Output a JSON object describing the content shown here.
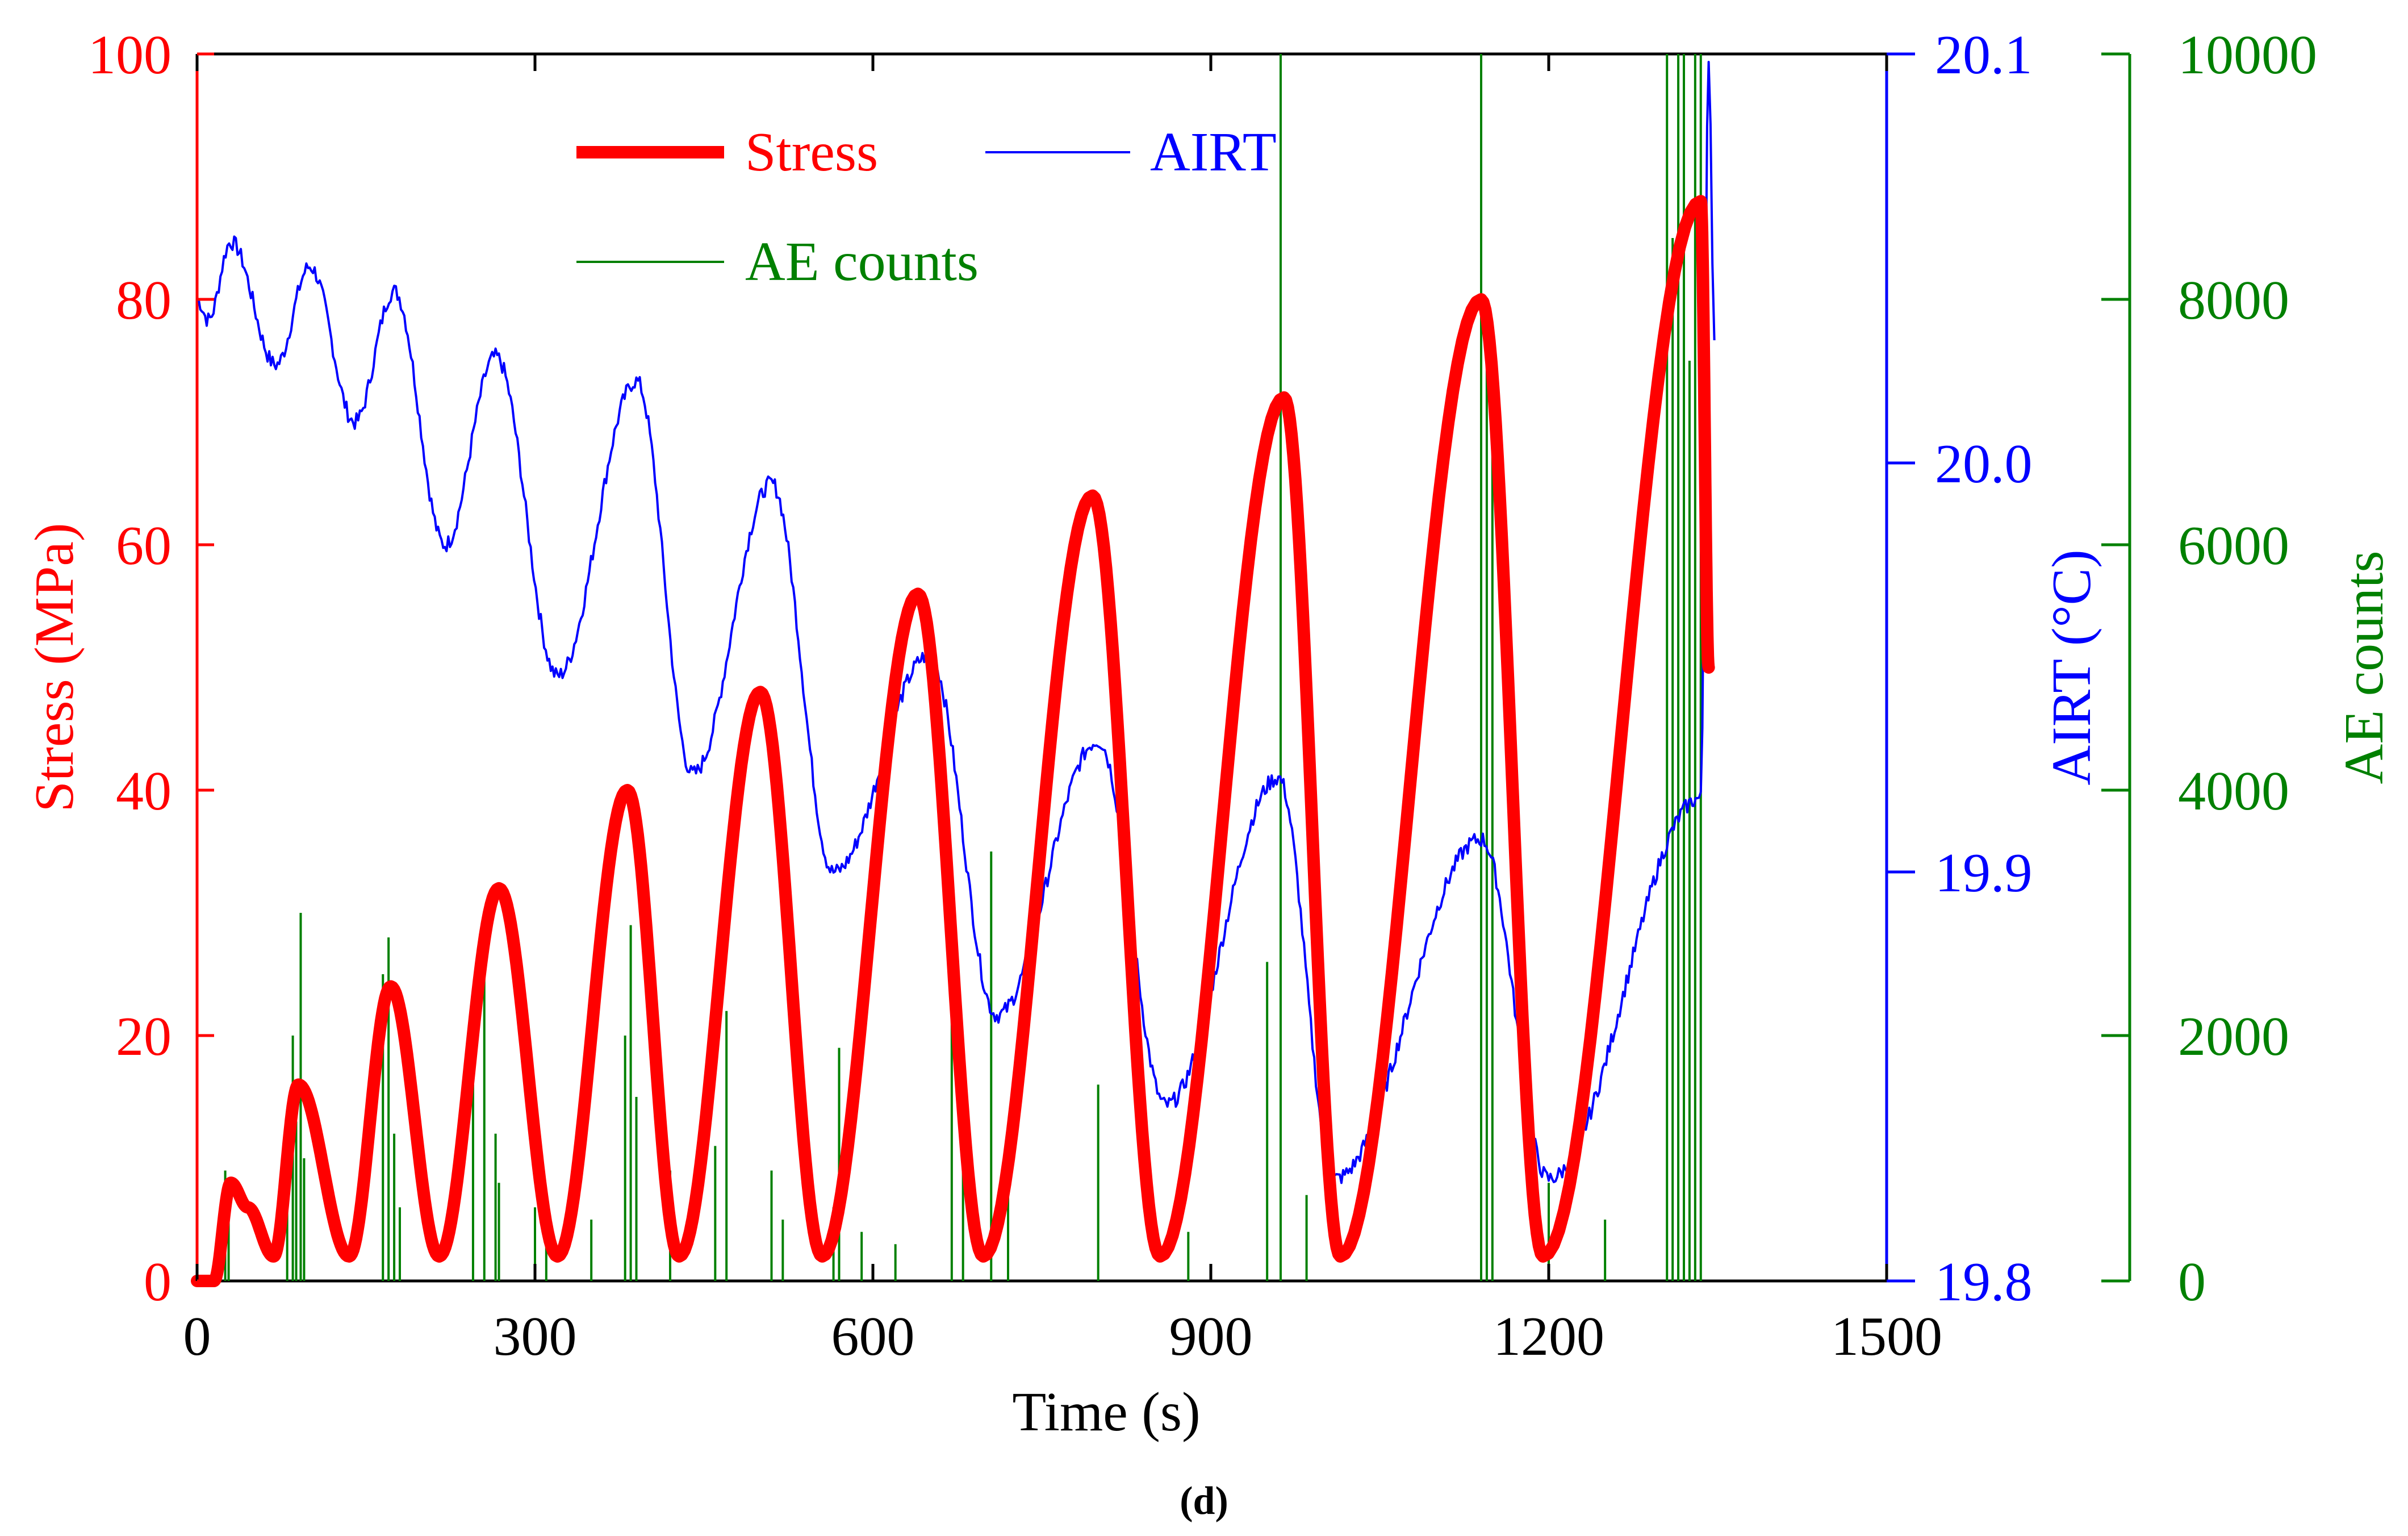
{
  "chart_data": {
    "type": "line",
    "panel_label": "(d)",
    "xlabel": "Time (s)",
    "xlim": [
      0,
      1500
    ],
    "xticks": [
      "0",
      "300",
      "600",
      "900",
      "1200",
      "1500"
    ],
    "axes": {
      "stress": {
        "label": "Stress (MPa)",
        "ylim": [
          0,
          100
        ],
        "ticks": [
          "0",
          "20",
          "40",
          "60",
          "80",
          "100"
        ],
        "color": "#ff0000"
      },
      "airt": {
        "label": "AIRT (°C)",
        "ylim": [
          19.8,
          20.1
        ],
        "ticks": [
          "19.8",
          "19.9",
          "20.0",
          "20.1"
        ],
        "color": "#0000ff"
      },
      "ae": {
        "label": "AE counts",
        "ylim": [
          0,
          10000
        ],
        "ticks": [
          "0",
          "2000",
          "4000",
          "6000",
          "8000",
          "10000"
        ],
        "color": "#008000"
      }
    },
    "legend": {
      "placement": "top-center",
      "entries": [
        {
          "name": "Stress",
          "color": "#ff0000"
        },
        {
          "name": "AIRT",
          "color": "#0000ff"
        },
        {
          "name": "AE counts",
          "color": "#008000"
        }
      ]
    },
    "series": [
      {
        "name": "Stress",
        "axis": "stress",
        "color": "#ff0000",
        "style": "thick-line",
        "x": [
          0,
          15,
          30,
          45,
          68,
          90,
          135,
          172,
          215,
          268,
          320,
          382,
          428,
          500,
          555,
          640,
          698,
          795,
          855,
          965,
          1015,
          1140,
          1195,
          1335,
          1342
        ],
        "y": [
          0,
          0,
          8,
          6,
          2,
          16,
          2,
          24,
          2,
          32,
          2,
          40,
          2,
          48,
          2,
          56,
          2,
          64,
          2,
          72,
          2,
          80,
          2,
          88,
          50
        ]
      },
      {
        "name": "AIRT",
        "axis": "airt",
        "color": "#0000ff",
        "style": "thin-line",
        "x": [
          0,
          10,
          30,
          70,
          100,
          140,
          175,
          220,
          265,
          320,
          390,
          440,
          510,
          565,
          650,
          710,
          800,
          860,
          960,
          1010,
          1140,
          1200,
          1335,
          1342,
          1347
        ],
        "y": [
          20.04,
          20.035,
          20.054,
          20.024,
          20.048,
          20.01,
          20.042,
          19.98,
          20.026,
          19.948,
          20.02,
          19.924,
          19.995,
          19.9,
          19.953,
          19.865,
          19.932,
          19.843,
          19.923,
          19.825,
          19.908,
          19.825,
          19.918,
          20.1,
          20.03
        ]
      },
      {
        "name": "AE counts",
        "axis": "ae",
        "color": "#008000",
        "style": "spikes",
        "x": [
          20,
          25,
          28,
          80,
          85,
          88,
          92,
          95,
          165,
          170,
          175,
          180,
          245,
          255,
          265,
          268,
          300,
          310,
          350,
          380,
          385,
          390,
          420,
          460,
          470,
          510,
          520,
          565,
          570,
          590,
          620,
          670,
          680,
          705,
          720,
          800,
          880,
          950,
          962,
          985,
          1140,
          1145,
          1150,
          1200,
          1250,
          1305,
          1310,
          1315,
          1320,
          1325,
          1330,
          1335
        ],
        "y": [
          500,
          900,
          600,
          1400,
          2000,
          1300,
          3000,
          1000,
          2500,
          2800,
          1200,
          600,
          1600,
          2500,
          1200,
          800,
          600,
          300,
          500,
          2000,
          2900,
          1500,
          900,
          1100,
          2200,
          900,
          500,
          600,
          1900,
          400,
          300,
          2200,
          1600,
          3500,
          1000,
          1600,
          400,
          2600,
          10000,
          700,
          10000,
          8000,
          7000,
          800,
          500,
          10000,
          8500,
          10000,
          10000,
          7500,
          10000,
          10000
        ]
      }
    ]
  }
}
